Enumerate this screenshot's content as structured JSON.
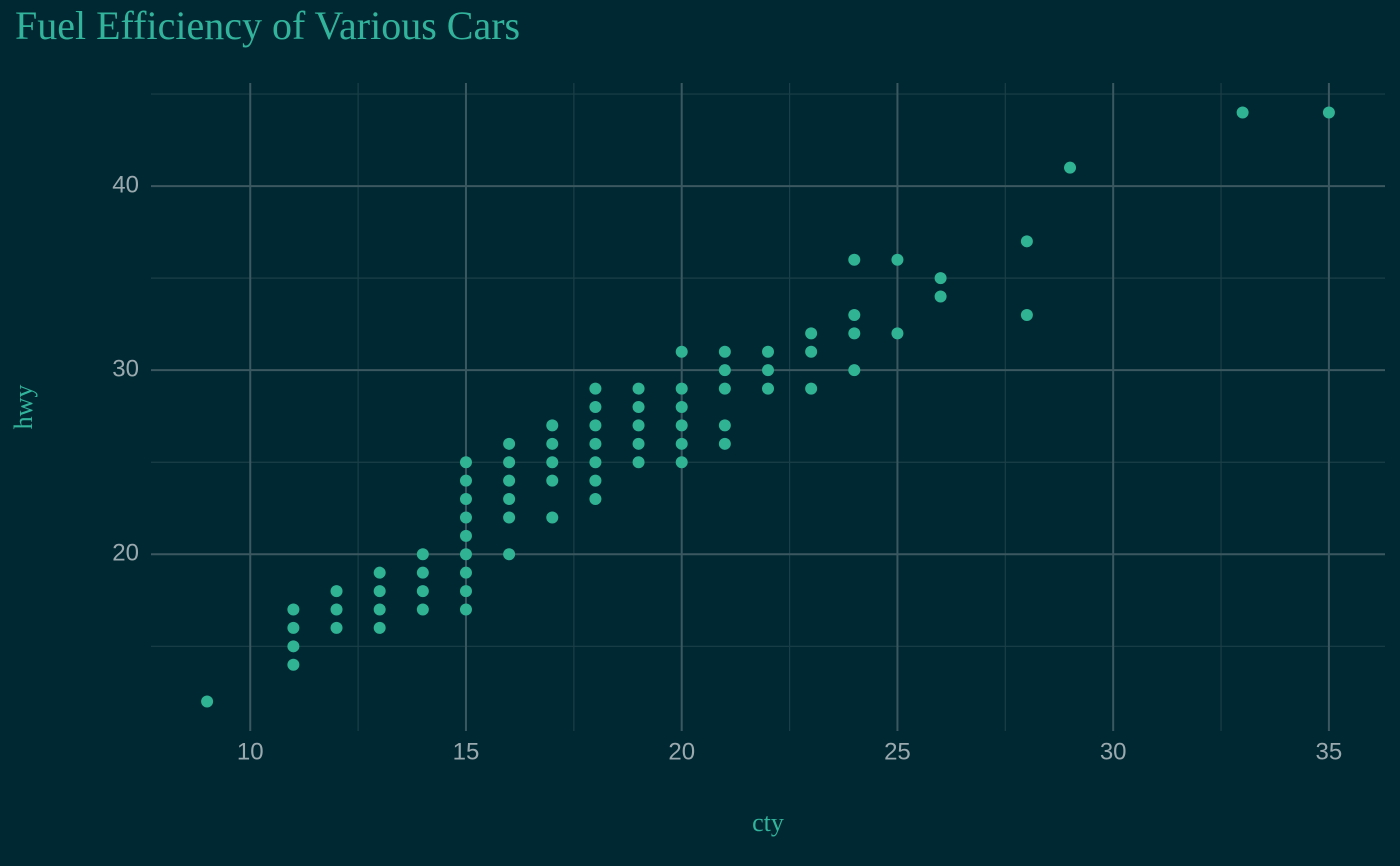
{
  "chart_data": {
    "type": "scatter",
    "title": "Fuel Efficiency of Various Cars",
    "x_label": "cty",
    "y_label": "hwy",
    "color": "#2fb393",
    "grid": true,
    "x": [
      9,
      11,
      11,
      11,
      11,
      12,
      12,
      12,
      13,
      13,
      13,
      13,
      14,
      14,
      14,
      14,
      15,
      15,
      15,
      15,
      15,
      15,
      15,
      15,
      15,
      16,
      16,
      16,
      16,
      16,
      16,
      17,
      17,
      17,
      17,
      17,
      18,
      18,
      18,
      18,
      18,
      18,
      18,
      19,
      19,
      19,
      19,
      19,
      20,
      20,
      20,
      20,
      20,
      20,
      21,
      21,
      21,
      21,
      21,
      22,
      22,
      22,
      23,
      23,
      23,
      24,
      24,
      24,
      24,
      25,
      25,
      26,
      26,
      28,
      28,
      29,
      33,
      35
    ],
    "values": [
      12,
      14,
      15,
      16,
      17,
      16,
      17,
      18,
      16,
      17,
      18,
      19,
      17,
      18,
      19,
      20,
      17,
      18,
      19,
      20,
      21,
      22,
      23,
      24,
      25,
      20,
      22,
      23,
      24,
      25,
      26,
      22,
      24,
      25,
      26,
      27,
      23,
      24,
      25,
      26,
      27,
      28,
      29,
      25,
      26,
      27,
      28,
      29,
      25,
      26,
      27,
      28,
      29,
      31,
      26,
      27,
      29,
      30,
      31,
      29,
      30,
      31,
      29,
      31,
      32,
      30,
      32,
      33,
      36,
      32,
      36,
      34,
      35,
      33,
      37,
      41,
      44,
      44
    ],
    "xlim": [
      7.7,
      36.3
    ],
    "ylim": [
      10.4,
      45.6
    ],
    "xticks": [
      10,
      15,
      20,
      25,
      30,
      35
    ],
    "yticks": [
      20,
      30,
      40
    ]
  }
}
